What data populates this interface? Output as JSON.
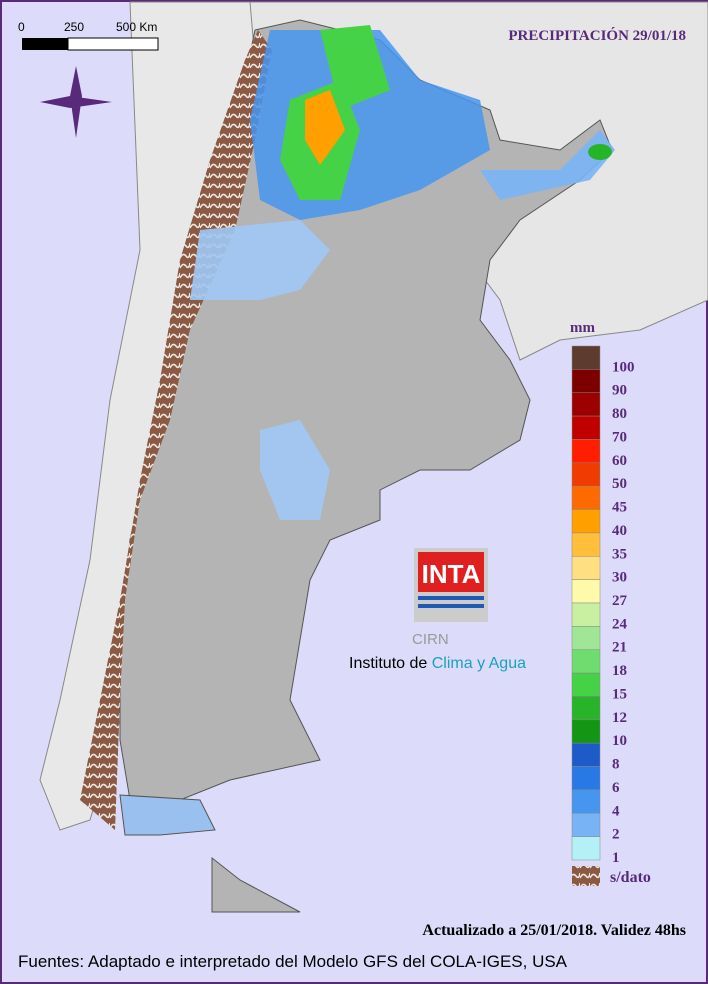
{
  "title": "PRECIPITACIÓN 29/01/18",
  "scale_bar": {
    "labels": [
      "0",
      "250",
      "500 Km"
    ]
  },
  "legend": {
    "unit": "mm",
    "no_data": "s/dato",
    "items": [
      {
        "label": 100,
        "color": "#5e3b2f"
      },
      {
        "label": 90,
        "color": "#7d0000"
      },
      {
        "label": 80,
        "color": "#9c0000"
      },
      {
        "label": 70,
        "color": "#c00000"
      },
      {
        "label": 60,
        "color": "#ff1e00"
      },
      {
        "label": 50,
        "color": "#f03c00"
      },
      {
        "label": 45,
        "color": "#ff6a00"
      },
      {
        "label": 40,
        "color": "#ffa000"
      },
      {
        "label": 35,
        "color": "#ffbe3c"
      },
      {
        "label": 30,
        "color": "#ffe080"
      },
      {
        "label": 27,
        "color": "#fffaaa"
      },
      {
        "label": 24,
        "color": "#c8f0a0"
      },
      {
        "label": 21,
        "color": "#a0e696"
      },
      {
        "label": 18,
        "color": "#6edc6e"
      },
      {
        "label": 15,
        "color": "#46d246"
      },
      {
        "label": 12,
        "color": "#28b428"
      },
      {
        "label": 10,
        "color": "#149614"
      },
      {
        "label": 8,
        "color": "#1e5ac8"
      },
      {
        "label": 6,
        "color": "#2878e6"
      },
      {
        "label": 4,
        "color": "#4696f0"
      },
      {
        "label": 2,
        "color": "#78b4f5"
      },
      {
        "label": 1,
        "color": "#b4f0f5"
      }
    ]
  },
  "logo": {
    "name": "INTA",
    "unit": "CIRN",
    "institute": "Instituto de",
    "institute_highlight": "Clima y Agua"
  },
  "updated": "Actualizado a 25/01/2018. Validez 48hs",
  "sources": "Fuentes: Adaptado e interpretado del Modelo GFS del COLA-IGES, USA"
}
